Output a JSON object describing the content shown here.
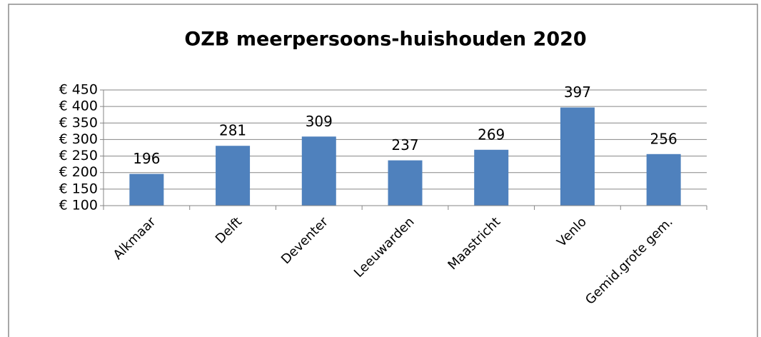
{
  "chart_data": {
    "type": "bar",
    "title": "OZB meerpersoons-huishouden 2020",
    "categories": [
      "Alkmaar",
      "Delft",
      "Deventer",
      "Leeuwarden",
      "Maastricht",
      "Venlo",
      "Gemid.grote gem."
    ],
    "values": [
      196,
      281,
      309,
      237,
      269,
      397,
      256
    ],
    "color": "#4f81bd",
    "ylim": [
      100,
      450
    ],
    "yticks": [
      {
        "value": 100,
        "label": "€ 100"
      },
      {
        "value": 150,
        "label": "€ 150"
      },
      {
        "value": 200,
        "label": "€ 200"
      },
      {
        "value": 250,
        "label": "€ 250"
      },
      {
        "value": 300,
        "label": "€ 300"
      },
      {
        "value": 350,
        "label": "€ 350"
      },
      {
        "value": 400,
        "label": "€ 400"
      },
      {
        "value": 450,
        "label": "€ 450"
      }
    ],
    "grid": true
  }
}
